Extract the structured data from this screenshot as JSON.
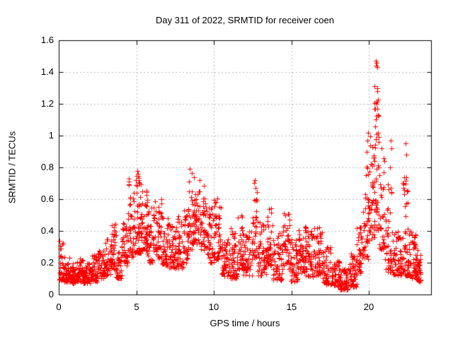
{
  "chart_data": {
    "type": "scatter",
    "title": "Day 311 of 2022, SRMTID for receiver coen",
    "xlabel": "GPS time / hours",
    "ylabel": "SRMTID / TECUs",
    "xlim": [
      0,
      24
    ],
    "ylim": [
      0,
      1.6
    ],
    "grid": true,
    "legend": "none",
    "x_ticks": {
      "values": [
        0,
        5,
        10,
        15,
        20
      ],
      "labels": [
        "0",
        "5",
        "10",
        "15",
        "20"
      ]
    },
    "y_ticks": {
      "values": [
        0,
        0.2,
        0.4,
        0.6,
        0.8,
        1,
        1.2,
        1.4,
        1.6
      ],
      "labels": [
        "0",
        "0.2",
        "0.4",
        "0.6",
        "0.8",
        "1",
        "1.2",
        "1.4",
        "1.6"
      ]
    },
    "colors": {
      "points": "#ff0000",
      "grid": "#b8b8b8",
      "border": "#000000",
      "background": "#ffffff",
      "text": "#000000"
    },
    "series": [
      {
        "name": "SRMTID",
        "marker": "plus",
        "marker_size": 7,
        "color": "#ff0000",
        "point_clusters": [
          [
            0.02,
            0.3,
            30,
            0.09,
            0.37,
            1.8
          ],
          [
            0.3,
            0.7,
            35,
            0.08,
            0.24,
            1.5
          ],
          [
            0.7,
            1.1,
            45,
            0.07,
            0.2,
            1.3
          ],
          [
            1.1,
            1.6,
            55,
            0.08,
            0.23,
            1.4
          ],
          [
            1.6,
            2.1,
            55,
            0.07,
            0.2,
            1.3
          ],
          [
            2.1,
            2.5,
            45,
            0.08,
            0.25,
            1.4
          ],
          [
            2.5,
            3.0,
            50,
            0.1,
            0.28,
            1.4
          ],
          [
            3.0,
            3.4,
            40,
            0.12,
            0.35,
            1.4
          ],
          [
            3.4,
            3.7,
            35,
            0.15,
            0.46,
            1.5
          ],
          [
            3.7,
            4.05,
            35,
            0.1,
            0.3,
            1.4
          ],
          [
            4.05,
            4.45,
            40,
            0.18,
            0.58,
            1.5
          ],
          [
            4.45,
            4.85,
            45,
            0.22,
            0.73,
            1.6
          ],
          [
            4.85,
            5.3,
            50,
            0.26,
            0.78,
            1.5
          ],
          [
            5.3,
            5.7,
            45,
            0.28,
            0.68,
            1.5
          ],
          [
            5.7,
            6.2,
            48,
            0.2,
            0.55,
            1.5
          ],
          [
            6.2,
            6.65,
            42,
            0.22,
            0.63,
            1.5
          ],
          [
            6.65,
            7.05,
            40,
            0.18,
            0.52,
            1.5
          ],
          [
            7.05,
            7.55,
            45,
            0.16,
            0.45,
            1.4
          ],
          [
            7.55,
            8.05,
            45,
            0.16,
            0.5,
            1.4
          ],
          [
            8.05,
            8.35,
            30,
            0.2,
            0.55,
            1.4
          ],
          [
            8.35,
            8.7,
            40,
            0.28,
            0.79,
            1.5
          ],
          [
            8.7,
            9.1,
            40,
            0.32,
            0.66,
            1.3
          ],
          [
            9.1,
            9.5,
            35,
            0.28,
            0.72,
            1.4
          ],
          [
            9.5,
            10.0,
            45,
            0.2,
            0.56,
            1.4
          ],
          [
            10.0,
            10.5,
            45,
            0.22,
            0.62,
            1.4
          ],
          [
            10.5,
            11.0,
            50,
            0.11,
            0.35,
            1.4
          ],
          [
            11.0,
            11.5,
            50,
            0.1,
            0.42,
            1.5
          ],
          [
            11.5,
            11.85,
            32,
            0.16,
            0.5,
            1.4
          ],
          [
            11.85,
            12.45,
            52,
            0.12,
            0.4,
            1.5
          ],
          [
            12.45,
            12.8,
            32,
            0.22,
            0.72,
            1.7
          ],
          [
            12.8,
            13.4,
            52,
            0.12,
            0.46,
            1.5
          ],
          [
            13.4,
            13.8,
            38,
            0.18,
            0.55,
            1.5
          ],
          [
            13.8,
            14.45,
            52,
            0.08,
            0.4,
            1.5
          ],
          [
            14.45,
            14.95,
            45,
            0.16,
            0.52,
            1.5
          ],
          [
            14.95,
            15.45,
            45,
            0.08,
            0.35,
            1.4
          ],
          [
            15.45,
            16.0,
            55,
            0.11,
            0.43,
            1.4
          ],
          [
            16.0,
            16.55,
            50,
            0.11,
            0.42,
            1.4
          ],
          [
            16.55,
            17.0,
            45,
            0.12,
            0.43,
            1.4
          ],
          [
            17.0,
            17.6,
            50,
            0.06,
            0.3,
            1.4
          ],
          [
            17.6,
            18.15,
            50,
            0.045,
            0.22,
            1.4
          ],
          [
            18.15,
            18.7,
            55,
            0.03,
            0.17,
            1.3
          ],
          [
            18.7,
            19.2,
            50,
            0.05,
            0.26,
            1.4
          ],
          [
            19.2,
            19.6,
            40,
            0.12,
            0.48,
            1.5
          ],
          [
            19.6,
            20.0,
            42,
            0.22,
            0.82,
            1.6
          ],
          [
            20.0,
            20.35,
            40,
            0.35,
            1.05,
            1.8
          ],
          [
            20.35,
            20.65,
            40,
            0.4,
            1.3,
            2.2
          ],
          [
            20.65,
            21.0,
            32,
            0.28,
            0.95,
            2.0
          ],
          [
            21.0,
            21.55,
            50,
            0.14,
            0.72,
            2.2
          ],
          [
            21.55,
            22.15,
            55,
            0.12,
            0.4,
            1.6
          ],
          [
            22.15,
            22.55,
            45,
            0.12,
            0.75,
            2.2
          ],
          [
            22.55,
            23.05,
            55,
            0.1,
            0.4,
            1.5
          ],
          [
            23.05,
            23.35,
            38,
            0.08,
            0.3,
            1.4
          ]
        ],
        "outlier_points": [
          [
            20.42,
            1.47
          ],
          [
            20.47,
            1.46
          ],
          [
            20.44,
            1.44
          ],
          [
            20.52,
            1.43
          ],
          [
            20.35,
            1.31
          ],
          [
            20.55,
            1.3
          ],
          [
            20.5,
            1.2
          ],
          [
            20.55,
            1.17
          ],
          [
            20.6,
            1.13
          ],
          [
            20.42,
            1.1
          ],
          [
            20.4,
            1.06
          ],
          [
            20.58,
            1.02
          ],
          [
            20.62,
            0.99
          ],
          [
            19.95,
            1.02
          ],
          [
            19.9,
            0.97
          ],
          [
            19.85,
            0.9
          ],
          [
            21.4,
            0.97
          ],
          [
            21.45,
            0.92
          ],
          [
            21.35,
            0.8
          ],
          [
            22.38,
            0.95
          ],
          [
            22.42,
            0.88
          ],
          [
            22.35,
            0.7
          ],
          [
            22.45,
            0.65
          ],
          [
            22.5,
            0.58
          ],
          [
            8.45,
            0.79
          ],
          [
            5.05,
            0.78
          ],
          [
            9.1,
            0.72
          ],
          [
            12.65,
            0.72
          ]
        ]
      }
    ]
  }
}
